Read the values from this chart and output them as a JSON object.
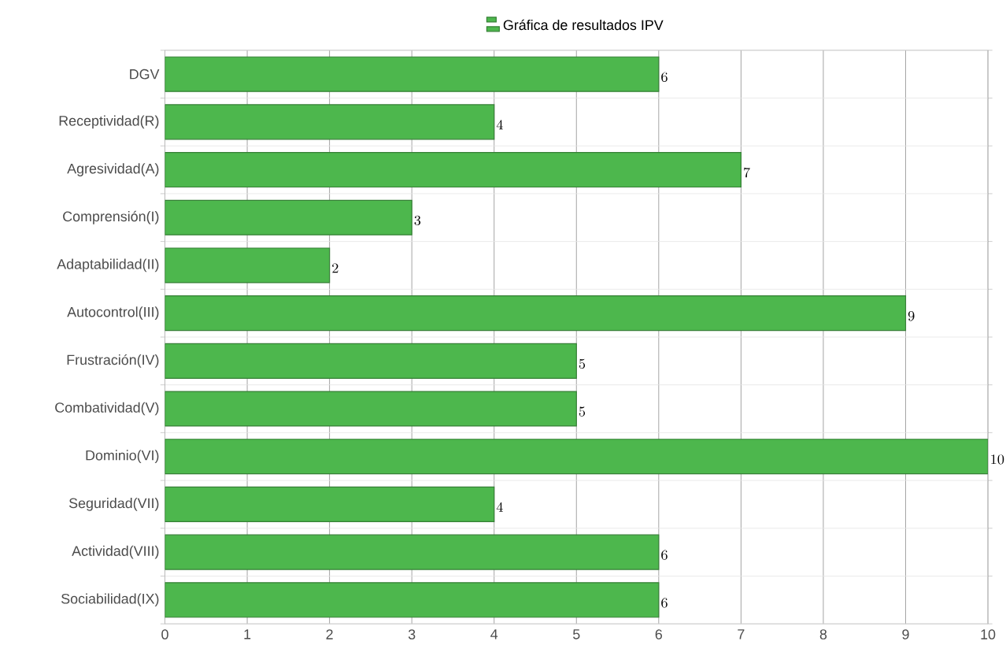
{
  "chart_data": {
    "type": "bar",
    "orientation": "horizontal",
    "categories": [
      "DGV",
      "Receptividad(R)",
      "Agresividad(A)",
      "Comprensión(I)",
      "Adaptabilidad(II)",
      "Autocontrol(III)",
      "Frustración(IV)",
      "Combatividad(V)",
      "Dominio(VI)",
      "Seguridad(VII)",
      "Actividad(VIII)",
      "Sociabilidad(IX)"
    ],
    "series": [
      {
        "name": "Gráfica de resultados IPV",
        "color": "#4db74d",
        "values": [
          6,
          4,
          7,
          3,
          2,
          9,
          5,
          5,
          10,
          4,
          6,
          6
        ]
      }
    ],
    "xlim": [
      0,
      10
    ],
    "xticks": [
      0,
      1,
      2,
      3,
      4,
      5,
      6,
      7,
      8,
      9,
      10
    ],
    "grid": true,
    "legend": "top",
    "data_labels": true
  }
}
